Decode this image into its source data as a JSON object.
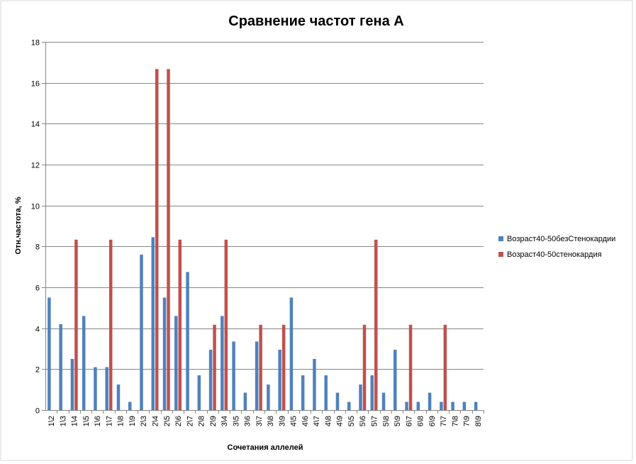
{
  "chart_data": {
    "type": "bar",
    "title": "Сравнение частот гена А",
    "xlabel": "Сочетания аллелей",
    "ylabel": "Отн.частота, %",
    "ylim": [
      0,
      18
    ],
    "yticks": [
      0,
      2,
      4,
      6,
      8,
      10,
      12,
      14,
      16,
      18
    ],
    "grid": true,
    "legend_position": "right",
    "categories": [
      "1\\2",
      "1\\3",
      "1\\4",
      "1\\5",
      "1\\6",
      "1\\7",
      "1\\8",
      "1\\9",
      "2\\3",
      "2\\4",
      "2\\5",
      "2\\6",
      "2\\7",
      "2\\8",
      "2\\9",
      "3\\4",
      "3\\5",
      "3\\6",
      "3\\7",
      "3\\8",
      "3\\9",
      "4\\5",
      "4\\6",
      "4\\7",
      "4\\8",
      "4\\9",
      "5\\5",
      "5\\6",
      "5\\7",
      "5\\8",
      "5\\9",
      "6\\7",
      "6\\8",
      "6\\9",
      "7\\7",
      "7\\8",
      "7\\9",
      "8\\9"
    ],
    "series": [
      {
        "name": "Возраст40-50безСтенокардии",
        "color": "#4F81BD",
        "values": [
          5.5,
          4.2,
          2.5,
          4.6,
          2.1,
          2.1,
          1.25,
          0.4,
          7.6,
          8.45,
          5.5,
          4.6,
          6.75,
          1.7,
          2.95,
          4.6,
          3.35,
          0.85,
          3.35,
          1.25,
          2.95,
          5.5,
          1.7,
          2.5,
          1.7,
          0.85,
          0.4,
          1.25,
          1.7,
          0.85,
          2.95,
          0.4,
          0.4,
          0.85,
          0.4,
          0.4,
          0.4,
          0.4
        ]
      },
      {
        "name": "Возраст40-50стенокардия",
        "color": "#C0504D",
        "values": [
          0,
          0,
          8.33,
          0,
          0,
          8.33,
          0,
          0,
          0,
          16.67,
          16.67,
          8.33,
          0,
          0,
          4.17,
          8.33,
          0,
          0,
          4.17,
          0,
          4.17,
          0,
          0,
          0,
          0,
          0,
          0,
          4.17,
          8.33,
          0,
          0,
          4.17,
          0,
          0,
          4.17,
          0,
          0,
          0
        ]
      }
    ]
  }
}
